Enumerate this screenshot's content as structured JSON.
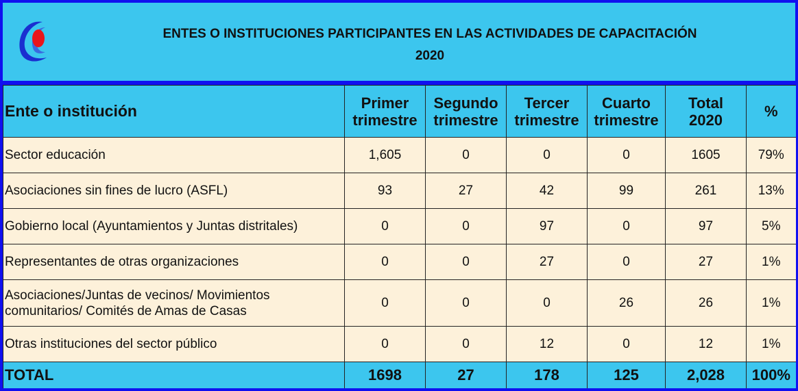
{
  "header": {
    "title": "ENTES O INSTITUCIONES PARTICIPANTES EN LAS ACTIVIDADES DE CAPACITACIÓN",
    "subtitle": "2020"
  },
  "table": {
    "columns": [
      "Ente o institución",
      "Primer\ntrimestre",
      "Segundo\ntrimestre",
      "Tercer\ntrimestre",
      "Cuarto\ntrimestre",
      "Total\n2020",
      "%"
    ],
    "rows": [
      [
        "Sector educación",
        "1,605",
        "0",
        "0",
        "0",
        "1605",
        "79%"
      ],
      [
        "Asociaciones sin fines de lucro (ASFL)",
        "93",
        "27",
        "42",
        "99",
        "261",
        "13%"
      ],
      [
        "Gobierno local (Ayuntamientos y Juntas distritales)",
        "0",
        "0",
        "97",
        "0",
        "97",
        "5%"
      ],
      [
        "Representantes de otras organizaciones",
        "0",
        "0",
        "27",
        "0",
        "27",
        "1%"
      ],
      [
        "Asociaciones/Juntas de vecinos/ Movimientos comunitarios/ Comités de Amas de Casas",
        "0",
        "0",
        "0",
        "26",
        "26",
        "1%"
      ],
      [
        "Otras instituciones del sector público",
        "0",
        "0",
        "12",
        "0",
        "12",
        "1%"
      ]
    ],
    "total": [
      "TOTAL",
      "1698",
      "27",
      "178",
      "125",
      "2,028",
      "100%"
    ]
  }
}
